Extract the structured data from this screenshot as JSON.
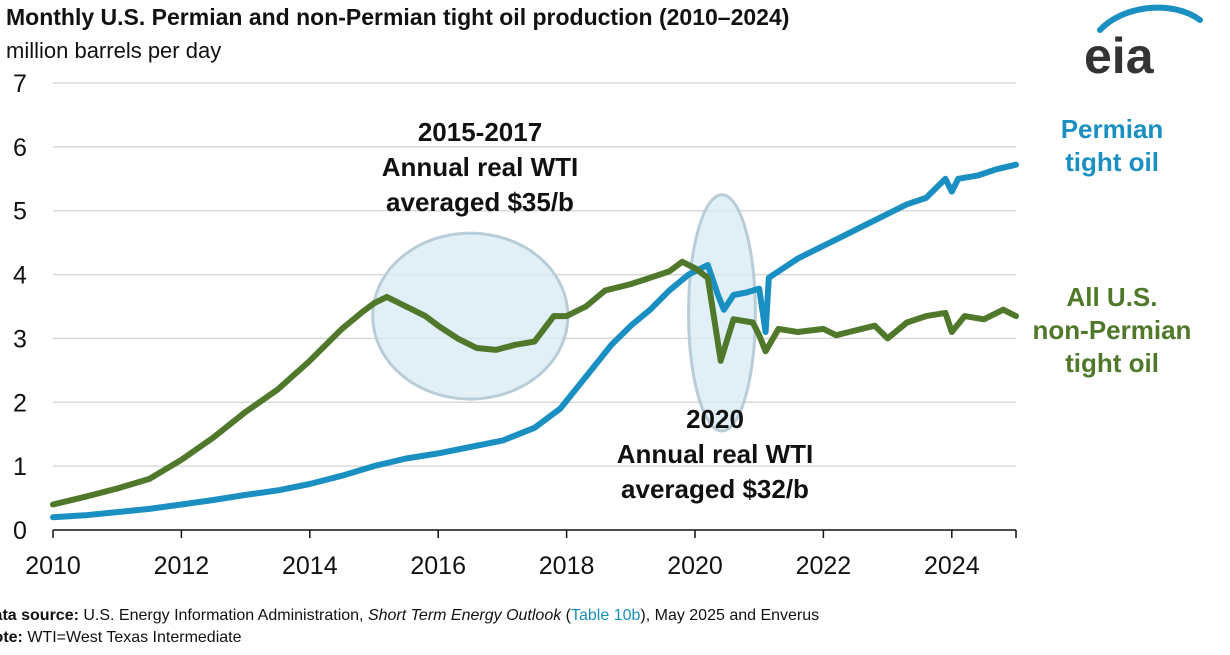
{
  "header": {
    "title": "Monthly U.S. Permian and non-Permian tight oil production (2010–2024)",
    "subtitle": "million barrels per day"
  },
  "logo": {
    "text": "eia"
  },
  "colors": {
    "permian": "#1a8fc1",
    "nonpermian": "#50782a",
    "ellipse_fill": "#d7e9f3",
    "ellipse_stroke": "#b9cdd8",
    "grid": "#d9d9d9"
  },
  "chart_data": {
    "type": "line",
    "xlim": [
      2010,
      2025
    ],
    "ylim": [
      0,
      7
    ],
    "x_ticks": [
      "2010",
      "2012",
      "2014",
      "2016",
      "2018",
      "2020",
      "2022",
      "2024"
    ],
    "y_ticks": [
      "0",
      "1",
      "2",
      "3",
      "4",
      "5",
      "6",
      "7"
    ],
    "grid": "horizontal",
    "series": [
      {
        "name": "Permian tight oil",
        "label_lines": [
          "Permian",
          "tight oil"
        ],
        "x": [
          2010.0,
          2010.5,
          2011.0,
          2011.5,
          2012.0,
          2012.5,
          2013.0,
          2013.5,
          2014.0,
          2014.5,
          2015.0,
          2015.5,
          2016.0,
          2016.5,
          2017.0,
          2017.5,
          2017.9,
          2018.3,
          2018.7,
          2019.0,
          2019.3,
          2019.6,
          2019.9,
          2020.1,
          2020.2,
          2020.35,
          2020.45,
          2020.6,
          2020.8,
          2021.0,
          2021.1,
          2021.15,
          2021.3,
          2021.6,
          2022.0,
          2022.3,
          2022.6,
          2023.0,
          2023.3,
          2023.6,
          2023.9,
          2024.0,
          2024.1,
          2024.4,
          2024.7,
          2025.0
        ],
        "values": [
          0.2,
          0.23,
          0.28,
          0.33,
          0.4,
          0.47,
          0.55,
          0.62,
          0.72,
          0.85,
          1.0,
          1.12,
          1.2,
          1.3,
          1.4,
          1.6,
          1.9,
          2.4,
          2.9,
          3.2,
          3.45,
          3.75,
          4.0,
          4.1,
          4.15,
          3.7,
          3.45,
          3.68,
          3.72,
          3.78,
          3.1,
          3.95,
          4.05,
          4.25,
          4.45,
          4.6,
          4.75,
          4.95,
          5.1,
          5.2,
          5.5,
          5.3,
          5.5,
          5.55,
          5.65,
          5.72
        ]
      },
      {
        "name": "All U.S. non-Permian tight oil",
        "label_lines": [
          "All U.S.",
          "non-Permian",
          "tight oil"
        ],
        "x": [
          2010.0,
          2010.5,
          2011.0,
          2011.5,
          2012.0,
          2012.5,
          2013.0,
          2013.5,
          2014.0,
          2014.5,
          2014.8,
          2015.0,
          2015.2,
          2015.5,
          2015.8,
          2016.0,
          2016.3,
          2016.6,
          2016.9,
          2017.2,
          2017.5,
          2017.8,
          2018.0,
          2018.3,
          2018.6,
          2019.0,
          2019.3,
          2019.6,
          2019.8,
          2020.0,
          2020.2,
          2020.3,
          2020.4,
          2020.6,
          2020.9,
          2021.0,
          2021.1,
          2021.3,
          2021.6,
          2022.0,
          2022.2,
          2022.4,
          2022.8,
          2023.0,
          2023.3,
          2023.6,
          2023.9,
          2024.0,
          2024.2,
          2024.5,
          2024.8,
          2025.0
        ],
        "values": [
          0.4,
          0.52,
          0.65,
          0.8,
          1.1,
          1.45,
          1.85,
          2.2,
          2.65,
          3.15,
          3.4,
          3.55,
          3.65,
          3.5,
          3.35,
          3.2,
          3.0,
          2.85,
          2.82,
          2.9,
          2.95,
          3.35,
          3.35,
          3.5,
          3.75,
          3.85,
          3.95,
          4.05,
          4.2,
          4.1,
          3.95,
          3.3,
          2.65,
          3.3,
          3.25,
          3.05,
          2.8,
          3.15,
          3.1,
          3.15,
          3.05,
          3.1,
          3.2,
          3.0,
          3.25,
          3.35,
          3.4,
          3.1,
          3.35,
          3.3,
          3.45,
          3.35
        ]
      }
    ],
    "annotations": [
      {
        "lines": [
          "2015-2017",
          "Annual real WTI",
          "averaged $35/b"
        ]
      },
      {
        "lines": [
          "2020",
          "Annual real WTI",
          "averaged $32/b"
        ]
      }
    ]
  },
  "footer": {
    "source_label": "Data source:",
    "source_text_a": " U.S. Energy Information Administration, ",
    "source_italic": "Short Term Energy Outlook",
    "source_text_b": " (",
    "source_link": "Table 10b",
    "source_text_c": "), May 2025 and Enverus",
    "note_label": "Note:",
    "note_text": " WTI=West Texas Intermediate"
  }
}
